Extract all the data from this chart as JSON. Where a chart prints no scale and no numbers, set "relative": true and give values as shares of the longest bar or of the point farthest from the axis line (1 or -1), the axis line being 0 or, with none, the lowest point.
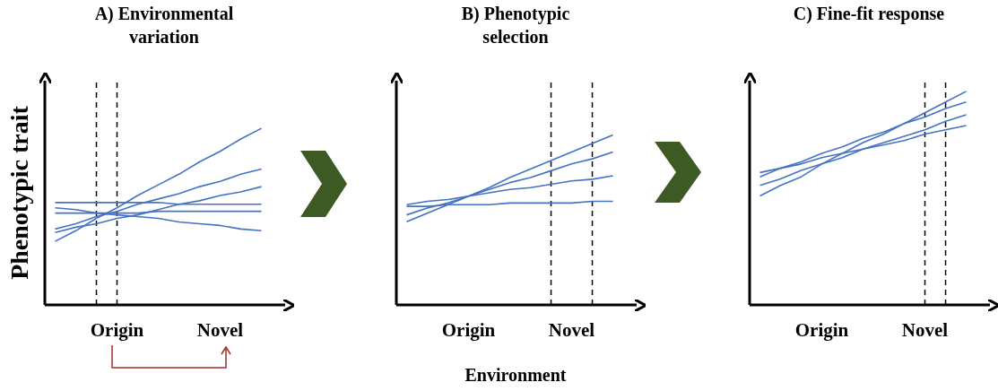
{
  "chart_data": [
    {
      "type": "line",
      "title": "A) Environmental variation",
      "ylabel": "Phenotypic trait",
      "relative": true,
      "marker": "none",
      "categories": [
        null,
        null,
        null,
        "Origin",
        null,
        null,
        null,
        null,
        "Novel",
        null,
        null
      ],
      "series": [
        {
          "color": "#4472c4",
          "values": [
            0.36,
            0.42,
            0.49,
            0.55,
            0.62,
            0.68,
            0.74,
            0.81,
            0.87,
            0.94,
            1
          ]
        },
        {
          "color": "#4472c4",
          "values": [
            0.43,
            0.46,
            0.5,
            0.53,
            0.57,
            0.6,
            0.63,
            0.67,
            0.7,
            0.74,
            0.77
          ]
        },
        {
          "color": "#4472c4",
          "values": [
            0.41,
            0.44,
            0.46,
            0.49,
            0.51,
            0.54,
            0.57,
            0.59,
            0.62,
            0.64,
            0.67
          ]
        },
        {
          "color": "#4472c4",
          "values": [
            0.58,
            0.58,
            0.58,
            0.58,
            0.58,
            0.58,
            0.57,
            0.57,
            0.57,
            0.57,
            0.57
          ]
        },
        {
          "color": "#4472c4",
          "values": [
            0.52,
            0.52,
            0.52,
            0.52,
            0.52,
            0.53,
            0.53,
            0.53,
            0.53,
            0.53,
            0.53
          ]
        },
        {
          "color": "#4472c4",
          "values": [
            0.55,
            0.54,
            0.52,
            0.51,
            0.5,
            0.49,
            0.47,
            0.46,
            0.45,
            0.43,
            0.42
          ]
        }
      ]
    },
    {
      "type": "line",
      "title": "B) Phenotypic selection",
      "xlabel": "Environment",
      "relative": true,
      "marker": "none",
      "categories": [
        null,
        null,
        null,
        "Origin",
        null,
        null,
        null,
        null,
        "Novel",
        null,
        null
      ],
      "series": [
        {
          "color": "#4472c4",
          "values": [
            0.49,
            0.54,
            0.59,
            0.64,
            0.69,
            0.75,
            0.8,
            0.85,
            0.9,
            0.95,
            1
          ]
        },
        {
          "color": "#4472c4",
          "values": [
            0.53,
            0.57,
            0.6,
            0.64,
            0.68,
            0.72,
            0.75,
            0.79,
            0.83,
            0.86,
            0.9
          ]
        },
        {
          "color": "#4472c4",
          "values": [
            0.59,
            0.61,
            0.62,
            0.64,
            0.66,
            0.68,
            0.69,
            0.71,
            0.73,
            0.74,
            0.76
          ]
        },
        {
          "color": "#4472c4",
          "values": [
            0.58,
            0.58,
            0.59,
            0.59,
            0.59,
            0.6,
            0.6,
            0.6,
            0.6,
            0.61,
            0.61
          ]
        }
      ]
    },
    {
      "type": "line",
      "title": "C) Fine-fit response",
      "relative": true,
      "marker": "none",
      "categories": [
        null,
        null,
        null,
        "Origin",
        null,
        null,
        null,
        null,
        "Novel",
        null,
        null
      ],
      "series": [
        {
          "color": "#4472c4",
          "values": [
            0.62,
            0.64,
            0.66,
            0.69,
            0.71,
            0.73,
            0.75,
            0.77,
            0.8,
            0.82,
            0.84
          ]
        },
        {
          "color": "#4472c4",
          "values": [
            0.6,
            0.64,
            0.67,
            0.71,
            0.74,
            0.78,
            0.81,
            0.85,
            0.88,
            0.92,
            0.95
          ]
        },
        {
          "color": "#4472c4",
          "values": [
            0.56,
            0.59,
            0.63,
            0.66,
            0.69,
            0.73,
            0.76,
            0.79,
            0.82,
            0.86,
            0.89
          ]
        },
        {
          "color": "#4472c4",
          "values": [
            0.51,
            0.56,
            0.6,
            0.66,
            0.71,
            0.76,
            0.8,
            0.85,
            0.9,
            0.95,
            1
          ]
        }
      ]
    }
  ]
}
